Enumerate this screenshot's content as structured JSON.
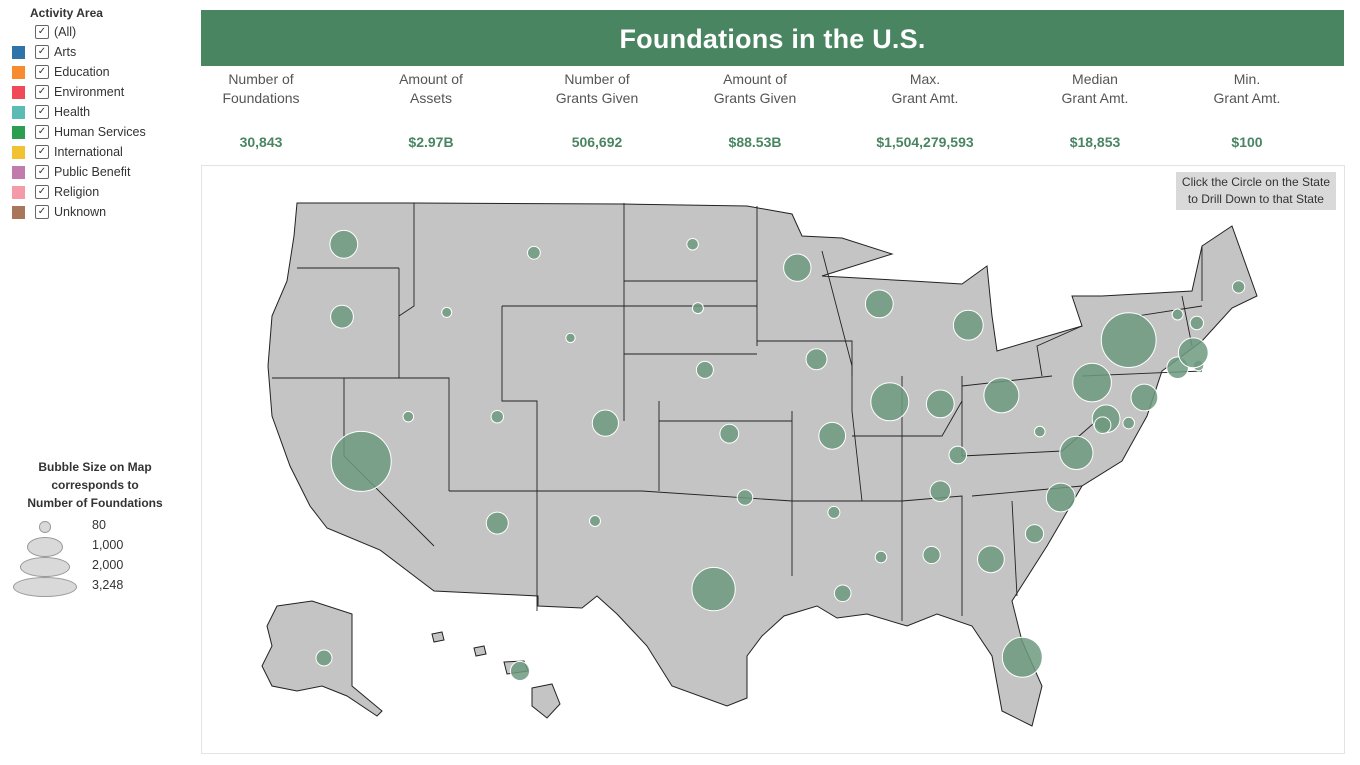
{
  "legend": {
    "title": "Activity Area",
    "items": [
      {
        "label": "(All)",
        "color": ""
      },
      {
        "label": "Arts",
        "color": "#2e74a8"
      },
      {
        "label": "Education",
        "color": "#f68b2f"
      },
      {
        "label": "Environment",
        "color": "#f04a58"
      },
      {
        "label": "Health",
        "color": "#5bbcb6"
      },
      {
        "label": "Human Services",
        "color": "#2c9e50"
      },
      {
        "label": "International",
        "color": "#f1c232"
      },
      {
        "label": "Public Benefit",
        "color": "#c27bad"
      },
      {
        "label": "Religion",
        "color": "#f59aa8"
      },
      {
        "label": "Unknown",
        "color": "#a9765b"
      }
    ]
  },
  "size_legend": {
    "title_lines": [
      "Bubble Size on Map",
      "corresponds to",
      "Number of Foundations"
    ],
    "entries": [
      {
        "label": "80",
        "value": 80
      },
      {
        "label": "1,000",
        "value": 1000
      },
      {
        "label": "2,000",
        "value": 2000
      },
      {
        "label": "3,248",
        "value": 3248
      }
    ]
  },
  "header": {
    "title": "Foundations in the U.S.",
    "color": "#4a8562"
  },
  "kpis": [
    {
      "label1": "Number of",
      "label2": "Foundations",
      "value": "30,843"
    },
    {
      "label1": "Amount of",
      "label2": "Assets",
      "value": "$2.97B"
    },
    {
      "label1": "Number of",
      "label2": "Grants Given",
      "value": "506,692"
    },
    {
      "label1": "Amount of",
      "label2": "Grants Given",
      "value": "$88.53B"
    },
    {
      "label1": "Max.",
      "label2": "Grant Amt.",
      "value": "$1,504,279,593"
    },
    {
      "label1": "Median",
      "label2": "Grant Amt.",
      "value": "$18,853"
    },
    {
      "label1": "Min.",
      "label2": "Grant Amt.",
      "value": "$100"
    }
  ],
  "map": {
    "tooltip_lines": [
      "Click the Circle on the State",
      "to Drill Down to that State"
    ],
    "land_color": "#c4c4c4",
    "bubble_color": "#6f9a7f",
    "states": [
      {
        "abbr": "WA",
        "lon": -120.5,
        "lat": 47.4,
        "foundations": 700
      },
      {
        "abbr": "OR",
        "lon": -120.6,
        "lat": 44.0,
        "foundations": 470
      },
      {
        "abbr": "CA",
        "lon": -119.5,
        "lat": 37.2,
        "foundations": 3248
      },
      {
        "abbr": "ID",
        "lon": -114.6,
        "lat": 44.2,
        "foundations": 90
      },
      {
        "abbr": "NV",
        "lon": -116.8,
        "lat": 39.3,
        "foundations": 100
      },
      {
        "abbr": "MT",
        "lon": -109.6,
        "lat": 47.0,
        "foundations": 150
      },
      {
        "abbr": "WY",
        "lon": -107.5,
        "lat": 43.0,
        "foundations": 80
      },
      {
        "abbr": "UT",
        "lon": -111.7,
        "lat": 39.3,
        "foundations": 140
      },
      {
        "abbr": "AZ",
        "lon": -111.7,
        "lat": 34.3,
        "foundations": 440
      },
      {
        "abbr": "CO",
        "lon": -105.5,
        "lat": 39.0,
        "foundations": 620
      },
      {
        "abbr": "NM",
        "lon": -106.1,
        "lat": 34.4,
        "foundations": 110
      },
      {
        "abbr": "ND",
        "lon": -100.5,
        "lat": 47.4,
        "foundations": 120
      },
      {
        "abbr": "SD",
        "lon": -100.2,
        "lat": 44.4,
        "foundations": 110
      },
      {
        "abbr": "NE",
        "lon": -99.8,
        "lat": 41.5,
        "foundations": 260
      },
      {
        "abbr": "KS",
        "lon": -98.4,
        "lat": 38.5,
        "foundations": 320
      },
      {
        "abbr": "OK",
        "lon": -97.5,
        "lat": 35.5,
        "foundations": 220
      },
      {
        "abbr": "TX",
        "lon": -99.3,
        "lat": 31.2,
        "foundations": 1700
      },
      {
        "abbr": "MN",
        "lon": -94.5,
        "lat": 46.3,
        "foundations": 680
      },
      {
        "abbr": "IA",
        "lon": -93.4,
        "lat": 42.0,
        "foundations": 400
      },
      {
        "abbr": "MO",
        "lon": -92.5,
        "lat": 38.4,
        "foundations": 650
      },
      {
        "abbr": "AR",
        "lon": -92.4,
        "lat": 34.8,
        "foundations": 130
      },
      {
        "abbr": "LA",
        "lon": -91.9,
        "lat": 31.0,
        "foundations": 250
      },
      {
        "abbr": "WI",
        "lon": -89.8,
        "lat": 44.6,
        "foundations": 700
      },
      {
        "abbr": "IL",
        "lon": -89.2,
        "lat": 40.0,
        "foundations": 1300
      },
      {
        "abbr": "MI",
        "lon": -84.7,
        "lat": 43.6,
        "foundations": 800
      },
      {
        "abbr": "IN",
        "lon": -86.3,
        "lat": 39.9,
        "foundations": 700
      },
      {
        "abbr": "OH",
        "lon": -82.8,
        "lat": 40.3,
        "foundations": 1100
      },
      {
        "abbr": "KY",
        "lon": -85.3,
        "lat": 37.5,
        "foundations": 280
      },
      {
        "abbr": "TN",
        "lon": -86.3,
        "lat": 35.8,
        "foundations": 380
      },
      {
        "abbr": "MS",
        "lon": -89.7,
        "lat": 32.7,
        "foundations": 120
      },
      {
        "abbr": "AL",
        "lon": -86.8,
        "lat": 32.8,
        "foundations": 270
      },
      {
        "abbr": "GA",
        "lon": -83.4,
        "lat": 32.6,
        "foundations": 650
      },
      {
        "abbr": "FL",
        "lon": -81.6,
        "lat": 28.0,
        "foundations": 1450
      },
      {
        "abbr": "SC",
        "lon": -80.9,
        "lat": 33.8,
        "foundations": 300
      },
      {
        "abbr": "NC",
        "lon": -79.4,
        "lat": 35.5,
        "foundations": 750
      },
      {
        "abbr": "VA",
        "lon": -78.5,
        "lat": 37.6,
        "foundations": 1000
      },
      {
        "abbr": "WV",
        "lon": -80.6,
        "lat": 38.6,
        "foundations": 100
      },
      {
        "abbr": "MD",
        "lon": -76.8,
        "lat": 39.2,
        "foundations": 700
      },
      {
        "abbr": "DC",
        "lon": -77.0,
        "lat": 38.9,
        "foundations": 250
      },
      {
        "abbr": "DE",
        "lon": -75.5,
        "lat": 39.0,
        "foundations": 120
      },
      {
        "abbr": "PA",
        "lon": -77.6,
        "lat": 40.9,
        "foundations": 1350
      },
      {
        "abbr": "NJ",
        "lon": -74.6,
        "lat": 40.2,
        "foundations": 650
      },
      {
        "abbr": "NY",
        "lon": -75.5,
        "lat": 42.9,
        "foundations": 2700
      },
      {
        "abbr": "CT",
        "lon": -72.7,
        "lat": 41.6,
        "foundations": 420
      },
      {
        "abbr": "RI",
        "lon": -71.5,
        "lat": 41.7,
        "foundations": 100
      },
      {
        "abbr": "MA",
        "lon": -71.8,
        "lat": 42.3,
        "foundations": 800
      },
      {
        "abbr": "VT",
        "lon": -72.7,
        "lat": 44.1,
        "foundations": 110
      },
      {
        "abbr": "NH",
        "lon": -71.6,
        "lat": 43.7,
        "foundations": 160
      },
      {
        "abbr": "ME",
        "lon": -69.2,
        "lat": 45.4,
        "foundations": 140
      },
      {
        "abbr": "AK",
        "lon": -151.0,
        "lat": 64.0,
        "foundations": 230
      },
      {
        "abbr": "HI",
        "lon": -157.9,
        "lat": 21.4,
        "foundations": 330
      }
    ]
  }
}
